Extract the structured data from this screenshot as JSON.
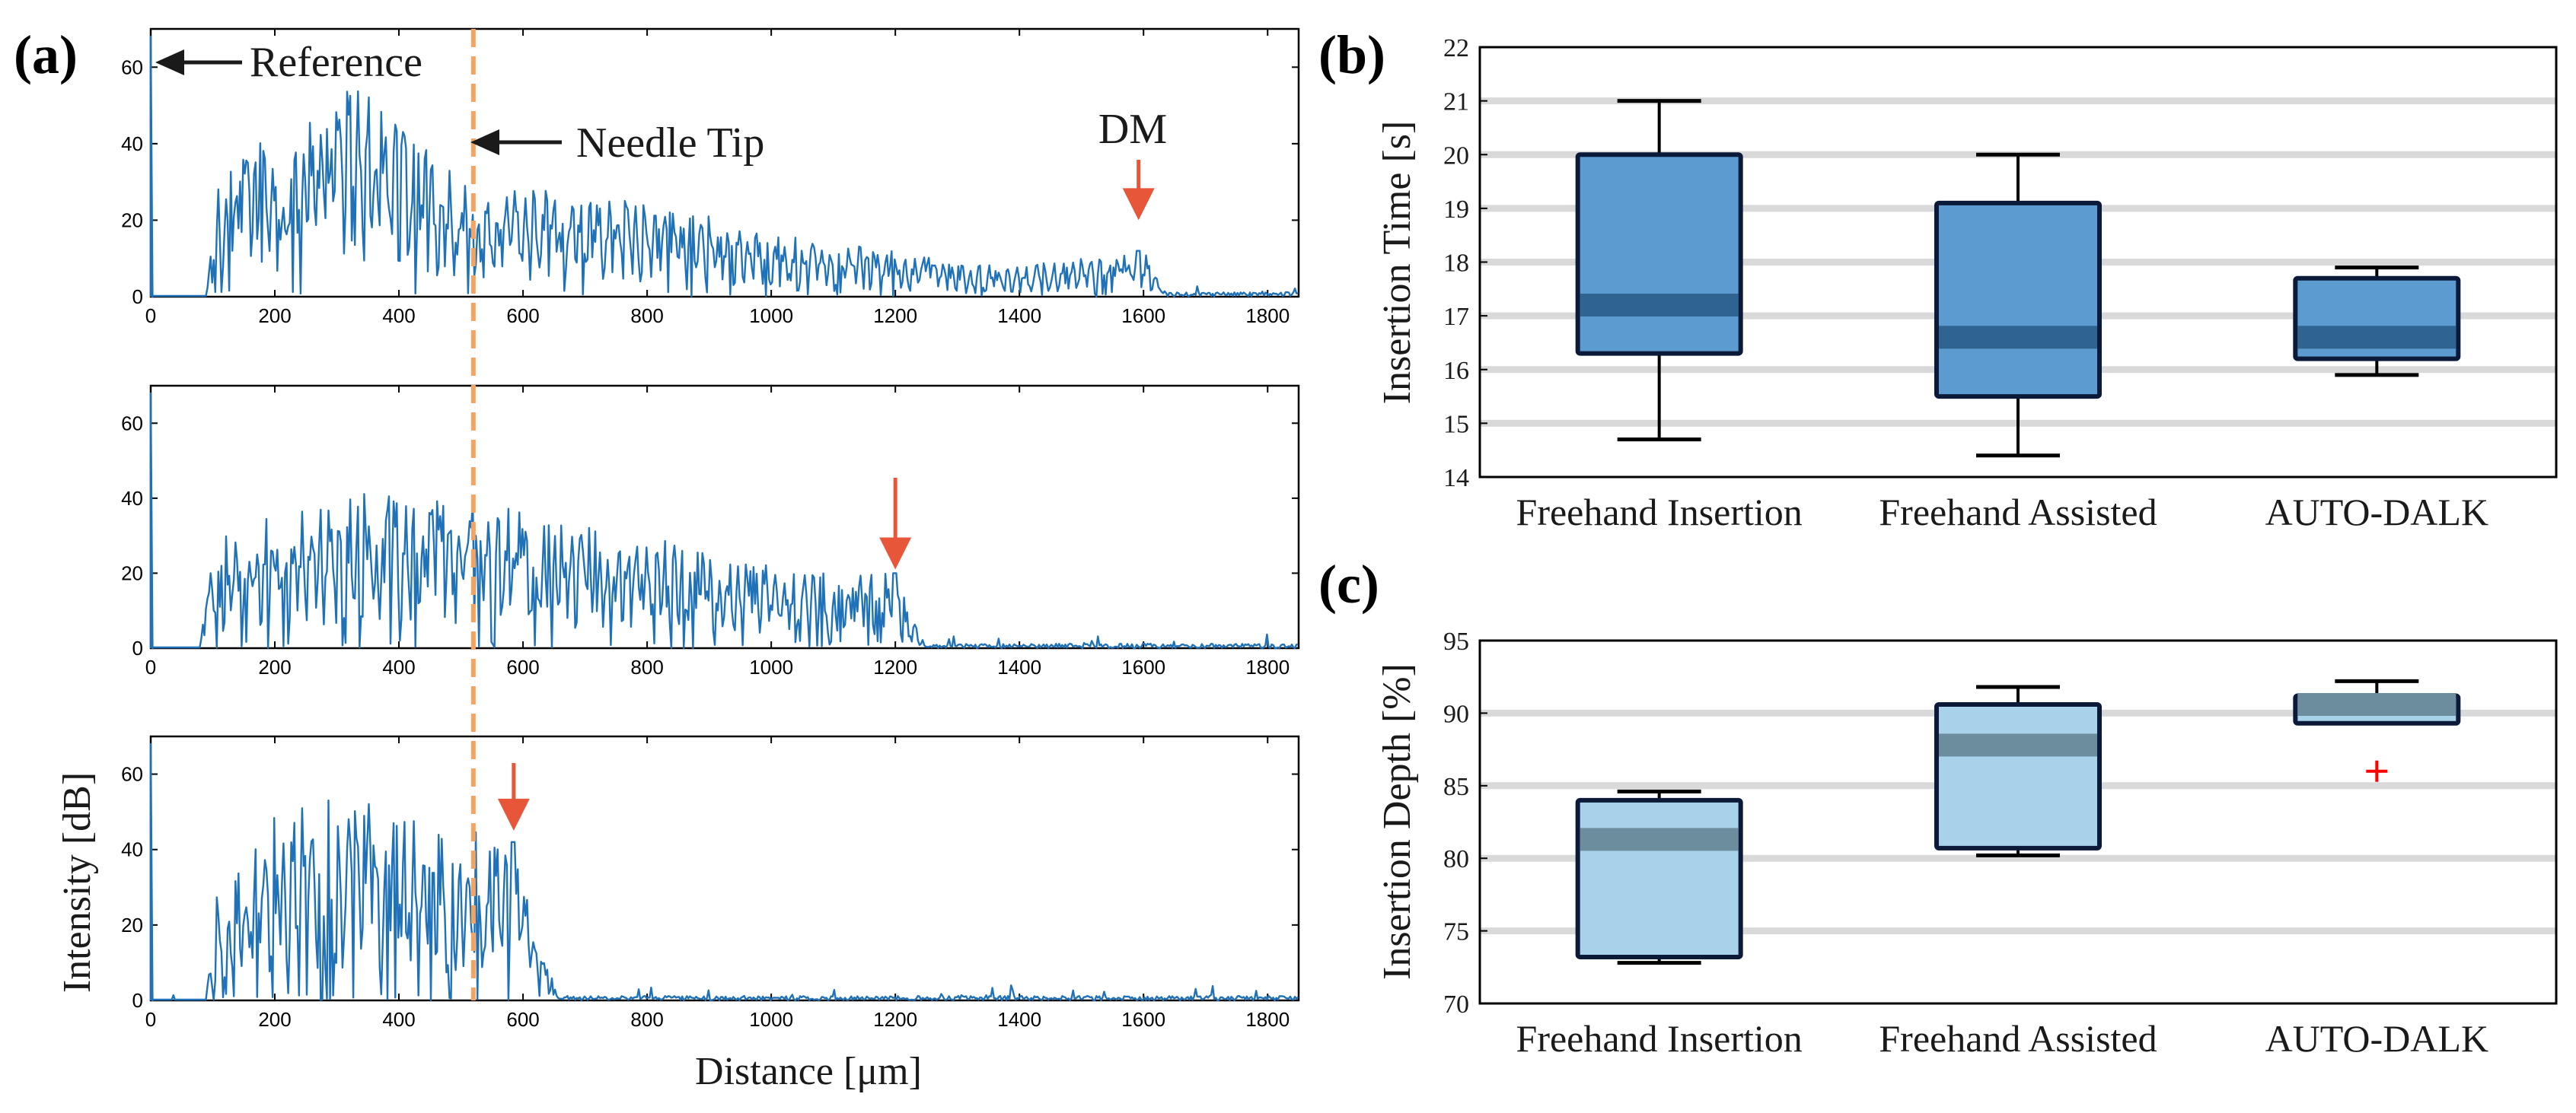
{
  "panel_labels": {
    "a": "(a)",
    "b": "(b)",
    "c": "(c)"
  },
  "annotations": {
    "reference": "Reference",
    "needle_tip": "Needle Tip",
    "dm": "DM"
  },
  "colors": {
    "trace": "#1f72b8",
    "arrow_red": "#e8563a",
    "dashed_line": "#f4a460",
    "box_b": "#5b9bd0",
    "median_b": "#2f6390",
    "box_c": "#a8d1ea",
    "median_c": "#6b8d9e",
    "outlier": "#ff0000",
    "gridline": "#d9d9d9"
  },
  "chart_data": [
    {
      "id": "a1",
      "type": "line",
      "title": "",
      "xlabel": "",
      "ylabel": "",
      "xlim": [
        0,
        1850
      ],
      "ylim": [
        0,
        70
      ],
      "xticks": [
        0,
        200,
        400,
        600,
        800,
        1000,
        1200,
        1400,
        1600,
        1800
      ],
      "yticks": [
        0,
        20,
        40,
        60
      ],
      "signal_end_um": 1640,
      "peak_um": 1592,
      "peak_value_db": 12,
      "envelope": [
        [
          0,
          0
        ],
        [
          90,
          0
        ],
        [
          100,
          26
        ],
        [
          130,
          35
        ],
        [
          330,
          58
        ],
        [
          500,
          30
        ],
        [
          800,
          25
        ],
        [
          1000,
          17
        ],
        [
          1200,
          12
        ],
        [
          1400,
          8
        ],
        [
          1600,
          12
        ],
        [
          1640,
          0
        ]
      ],
      "reference_peak": [
        0,
        68
      ],
      "arrow_um": 1592,
      "dashed_line_um": 520
    },
    {
      "id": "a2",
      "type": "line",
      "xlim": [
        0,
        1850
      ],
      "ylim": [
        0,
        70
      ],
      "xticks": [
        0,
        200,
        400,
        600,
        800,
        1000,
        1200,
        1400,
        1600,
        1800
      ],
      "yticks": [
        0,
        20,
        40,
        60
      ],
      "signal_end_um": 1250,
      "peak_um": 1200,
      "peak_value_db": 20,
      "envelope": [
        [
          0,
          0
        ],
        [
          80,
          0
        ],
        [
          90,
          25
        ],
        [
          140,
          33
        ],
        [
          310,
          42
        ],
        [
          500,
          40
        ],
        [
          800,
          30
        ],
        [
          1000,
          22
        ],
        [
          1150,
          20
        ],
        [
          1200,
          20
        ],
        [
          1250,
          0
        ]
      ],
      "reference_peak": [
        0,
        68
      ],
      "arrow_um": 1200,
      "dashed_line_um": 520
    },
    {
      "id": "a3",
      "type": "line",
      "xlim": [
        0,
        1850
      ],
      "ylim": [
        0,
        70
      ],
      "xticks": [
        0,
        200,
        400,
        600,
        800,
        1000,
        1200,
        1400,
        1600,
        1800
      ],
      "yticks": [
        0,
        20,
        40,
        60
      ],
      "xlabel": "Distance [μm]",
      "ylabel": "Intensity [dB]",
      "signal_end_um": 660,
      "peak_um": 585,
      "peak_value_db": 42,
      "envelope": [
        [
          0,
          0
        ],
        [
          90,
          0
        ],
        [
          100,
          26
        ],
        [
          200,
          50
        ],
        [
          330,
          55
        ],
        [
          450,
          48
        ],
        [
          585,
          42
        ],
        [
          640,
          12
        ],
        [
          660,
          0
        ]
      ],
      "reference_peak": [
        0,
        68
      ],
      "arrow_um": 585,
      "dashed_line_um": 520
    },
    {
      "id": "b",
      "type": "box",
      "ylabel": "Insertion Time [s]",
      "ylim": [
        14,
        22
      ],
      "yticks": [
        14,
        15,
        16,
        17,
        18,
        19,
        20,
        21,
        22
      ],
      "gridlines": [
        15,
        16,
        17,
        18,
        19,
        20,
        21
      ],
      "categories": [
        "Freehand Insertion",
        "Freehand Assisted",
        "AUTO-DALK"
      ],
      "boxes": [
        {
          "whisker_low": 14.7,
          "q1": 16.3,
          "median": 17.2,
          "q3": 20.0,
          "whisker_high": 21.0
        },
        {
          "whisker_low": 14.4,
          "q1": 15.5,
          "median": 16.6,
          "q3": 19.1,
          "whisker_high": 20.0
        },
        {
          "whisker_low": 15.9,
          "q1": 16.2,
          "median": 16.6,
          "q3": 17.7,
          "whisker_high": 17.9
        }
      ]
    },
    {
      "id": "c",
      "type": "box",
      "ylabel": "Insertion Depth [%]",
      "ylim": [
        70,
        95
      ],
      "yticks": [
        70,
        75,
        80,
        85,
        90,
        95
      ],
      "gridlines": [
        75,
        80,
        85,
        90
      ],
      "categories": [
        "Freehand Insertion",
        "Freehand Assisted",
        "AUTO-DALK"
      ],
      "boxes": [
        {
          "whisker_low": 72.8,
          "q1": 73.2,
          "median": 81.3,
          "q3": 84.0,
          "whisker_high": 84.6
        },
        {
          "whisker_low": 80.2,
          "q1": 80.7,
          "median": 87.8,
          "q3": 90.6,
          "whisker_high": 91.8
        },
        {
          "whisker_low": 89.3,
          "q1": 89.3,
          "median": 90.6,
          "q3": 91.2,
          "whisker_high": 92.2,
          "outliers": [
            86
          ]
        }
      ]
    }
  ]
}
